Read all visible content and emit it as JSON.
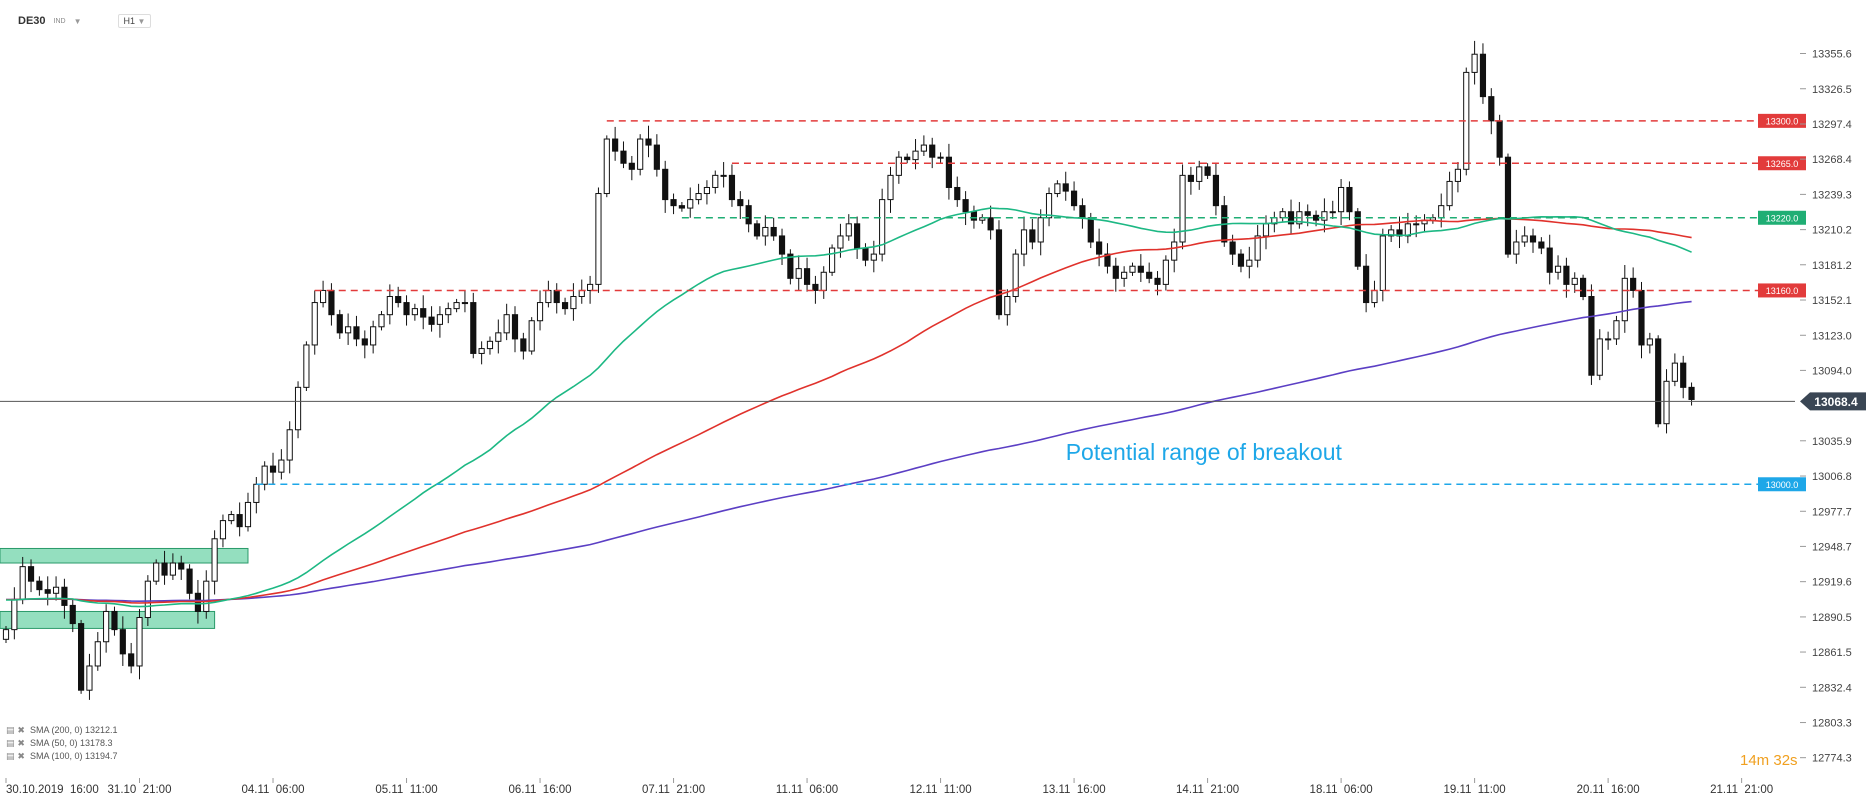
{
  "toolbar": {
    "symbol": "DE30",
    "market": "IND",
    "timeframe": "H1"
  },
  "timer": "14m 32s",
  "colors": {
    "up": "#ffffff",
    "down": "#111111",
    "sma200": "#5b3fc4",
    "sma50": "#1db884",
    "sma100": "#e0322c",
    "zone": "#3cc48a",
    "last": "#3a4654"
  },
  "chart_data": {
    "type": "candlestick",
    "title": "",
    "symbol": "DE30",
    "timeframe": "H1",
    "ylim": [
      12760,
      13375
    ],
    "x_range": [
      0,
      212
    ],
    "y_tick_labels": [
      "13355.6",
      "13326.5",
      "13297.4",
      "13268.4",
      "13239.3",
      "13210.2",
      "13181.2",
      "13152.1",
      "13123.0",
      "13094.0",
      "13035.9",
      "13006.8",
      "12977.7",
      "12948.7",
      "12919.6",
      "12890.5",
      "12861.5",
      "12832.4",
      "12803.3",
      "12774.3"
    ],
    "y_tick_values": [
      13355.6,
      13326.5,
      13297.4,
      13268.4,
      13239.3,
      13210.2,
      13181.2,
      13152.1,
      13123.0,
      13094.0,
      13035.9,
      13006.8,
      12977.7,
      12948.7,
      12919.6,
      12890.5,
      12861.5,
      12832.4,
      12803.3,
      12774.3
    ],
    "x_tick_labels": [
      "30.10.2019  16:00",
      "31.10  21:00",
      "04.11  06:00",
      "05.11  11:00",
      "06.11  16:00",
      "07.11  21:00",
      "11.11  06:00",
      "12.11  11:00",
      "13.11  16:00",
      "14.11  21:00",
      "18.11  06:00",
      "19.11  11:00",
      "20.11  16:00",
      "21.11  21:00"
    ],
    "x_tick_index": [
      0,
      16,
      32,
      48,
      64,
      80,
      96,
      112,
      128,
      144,
      160,
      176,
      192,
      208
    ],
    "last_price": {
      "label": "13068.4",
      "value": 13068.4
    },
    "levels": [
      {
        "label": "13300.0",
        "value": 13300.0,
        "color": "#e23b3b",
        "from": 72
      },
      {
        "label": "13265.0",
        "value": 13265.0,
        "color": "#e23b3b",
        "from": 87
      },
      {
        "label": "13220.0",
        "value": 13220.0,
        "color": "#1fae74",
        "from": 81
      },
      {
        "label": "13160.0",
        "value": 13160.0,
        "color": "#e23b3b",
        "from": 37
      },
      {
        "label": "13000.0",
        "value": 13000.0,
        "color": "#1ea7e8",
        "from": 30
      }
    ],
    "zones": [
      {
        "from": 0,
        "to": 29,
        "low": 12935,
        "high": 12947
      },
      {
        "from": 0,
        "to": 25,
        "low": 12881,
        "high": 12895
      }
    ],
    "annotation": {
      "text": "Potential range of breakout",
      "x": 127,
      "y": 13010,
      "color": "#1ea7e8"
    },
    "legend": [
      {
        "icons": "▤ ✖",
        "text": "SMA (200, 0) 13212.1",
        "color": "#5b3fc4"
      },
      {
        "icons": "▤ ✖",
        "text": "SMA (50, 0) 13178.3",
        "color": "#1db884"
      },
      {
        "icons": "▤ ✖",
        "text": "SMA (100, 0) 13194.7",
        "color": "#e0322c"
      }
    ],
    "close": [
      12880,
      12905,
      12932,
      12920,
      12913,
      12910,
      12915,
      12900,
      12885,
      12830,
      12850,
      12870,
      12895,
      12880,
      12860,
      12850,
      12890,
      12920,
      12935,
      12925,
      12935,
      12930,
      12910,
      12895,
      12920,
      12955,
      12970,
      12975,
      12965,
      12985,
      13000,
      13015,
      13010,
      13020,
      13045,
      13080,
      13115,
      13150,
      13160,
      13140,
      13125,
      13130,
      13120,
      13115,
      13130,
      13140,
      13155,
      13150,
      13140,
      13145,
      13138,
      13132,
      13140,
      13145,
      13150,
      13150,
      13108,
      13112,
      13118,
      13125,
      13140,
      13120,
      13110,
      13135,
      13150,
      13160,
      13150,
      13145,
      13155,
      13160,
      13165,
      13240,
      13285,
      13275,
      13265,
      13260,
      13285,
      13280,
      13260,
      13235,
      13230,
      13228,
      13235,
      13240,
      13245,
      13255,
      13255,
      13235,
      13230,
      13215,
      13205,
      13212,
      13205,
      13190,
      13170,
      13178,
      13165,
      13160,
      13175,
      13195,
      13205,
      13215,
      13195,
      13185,
      13190,
      13235,
      13255,
      13270,
      13268,
      13275,
      13280,
      13270,
      13270,
      13245,
      13235,
      13225,
      13218,
      13220,
      13210,
      13140,
      13155,
      13190,
      13210,
      13200,
      13220,
      13240,
      13248,
      13242,
      13230,
      13220,
      13200,
      13190,
      13180,
      13170,
      13175,
      13180,
      13175,
      13170,
      13165,
      13185,
      13200,
      13255,
      13250,
      13262,
      13255,
      13230,
      13200,
      13190,
      13180,
      13185,
      13205,
      13215,
      13220,
      13225,
      13215,
      13225,
      13222,
      13218,
      13225,
      13225,
      13245,
      13225,
      13180,
      13150,
      13160,
      13205,
      13210,
      13205,
      13215,
      13215,
      13218,
      13220,
      13230,
      13250,
      13260,
      13340,
      13355,
      13320,
      13300,
      13270,
      13190,
      13200,
      13205,
      13200,
      13195,
      13175,
      13180,
      13165,
      13170,
      13155,
      13090,
      13120,
      13120,
      13135,
      13170,
      13160,
      13115,
      13120,
      13050,
      13085,
      13100,
      13080,
      13070
    ]
  }
}
